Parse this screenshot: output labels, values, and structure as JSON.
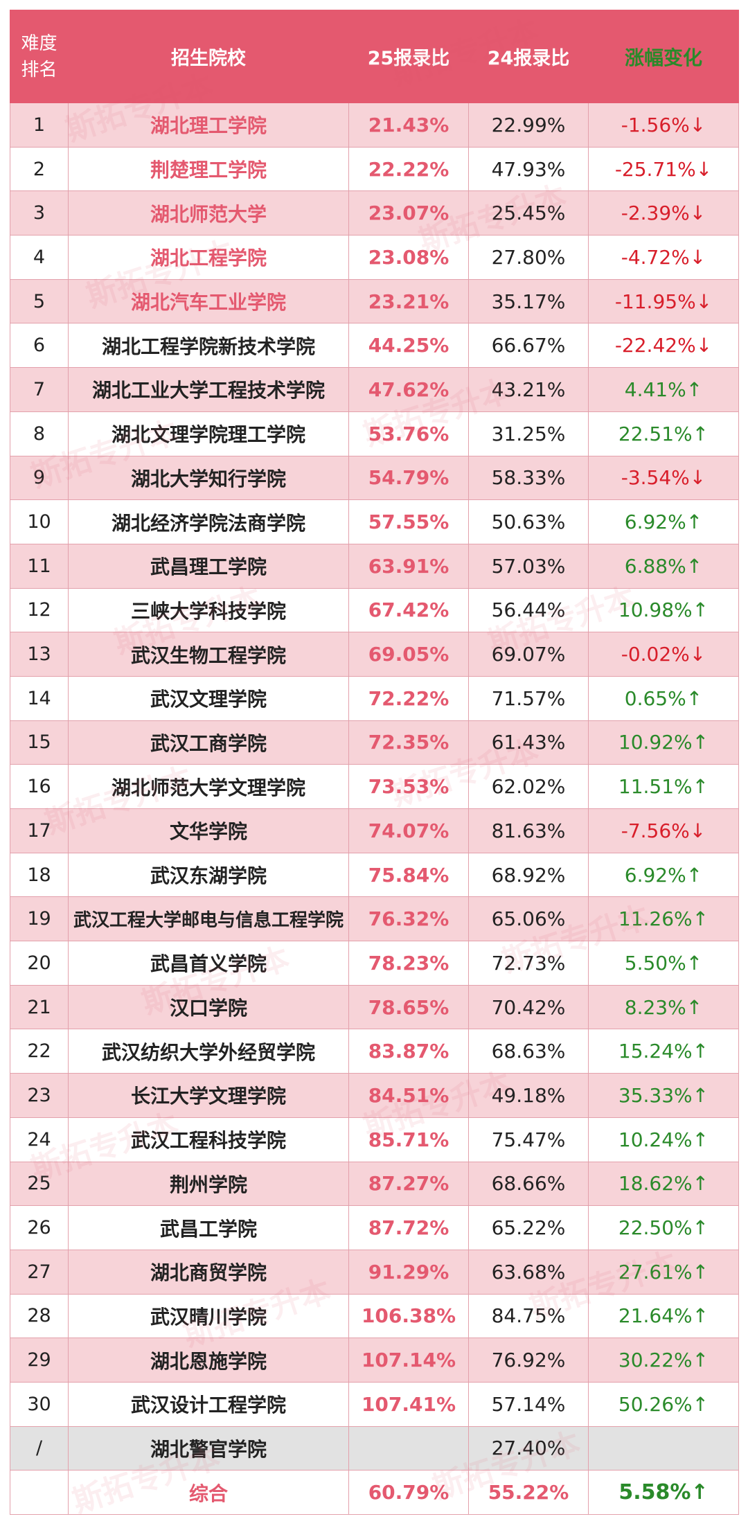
{
  "header": {
    "rank_line1": "难度",
    "rank_line2": "排名",
    "school": "招生院校",
    "ratio25": "25报录比",
    "ratio24": "24报录比",
    "change": "涨幅变化"
  },
  "rows": [
    {
      "rank": "1",
      "school": "湖北理工学院",
      "r25": "21.43%",
      "r24": "22.99%",
      "change": "-1.56%↓",
      "trend": "down",
      "top": true
    },
    {
      "rank": "2",
      "school": "荆楚理工学院",
      "r25": "22.22%",
      "r24": "47.93%",
      "change": "-25.71%↓",
      "trend": "down",
      "top": true
    },
    {
      "rank": "3",
      "school": "湖北师范大学",
      "r25": "23.07%",
      "r24": "25.45%",
      "change": "-2.39%↓",
      "trend": "down",
      "top": true
    },
    {
      "rank": "4",
      "school": "湖北工程学院",
      "r25": "23.08%",
      "r24": "27.80%",
      "change": "-4.72%↓",
      "trend": "down",
      "top": true
    },
    {
      "rank": "5",
      "school": "湖北汽车工业学院",
      "r25": "23.21%",
      "r24": "35.17%",
      "change": "-11.95%↓",
      "trend": "down",
      "top": true
    },
    {
      "rank": "6",
      "school": "湖北工程学院新技术学院",
      "r25": "44.25%",
      "r24": "66.67%",
      "change": "-22.42%↓",
      "trend": "down",
      "top": false
    },
    {
      "rank": "7",
      "school": "湖北工业大学工程技术学院",
      "r25": "47.62%",
      "r24": "43.21%",
      "change": "4.41%↑",
      "trend": "up",
      "top": false
    },
    {
      "rank": "8",
      "school": "湖北文理学院理工学院",
      "r25": "53.76%",
      "r24": "31.25%",
      "change": "22.51%↑",
      "trend": "up",
      "top": false
    },
    {
      "rank": "9",
      "school": "湖北大学知行学院",
      "r25": "54.79%",
      "r24": "58.33%",
      "change": "-3.54%↓",
      "trend": "down",
      "top": false
    },
    {
      "rank": "10",
      "school": "湖北经济学院法商学院",
      "r25": "57.55%",
      "r24": "50.63%",
      "change": "6.92%↑",
      "trend": "up",
      "top": false
    },
    {
      "rank": "11",
      "school": "武昌理工学院",
      "r25": "63.91%",
      "r24": "57.03%",
      "change": "6.88%↑",
      "trend": "up",
      "top": false
    },
    {
      "rank": "12",
      "school": "三峡大学科技学院",
      "r25": "67.42%",
      "r24": "56.44%",
      "change": "10.98%↑",
      "trend": "up",
      "top": false
    },
    {
      "rank": "13",
      "school": "武汉生物工程学院",
      "r25": "69.05%",
      "r24": "69.07%",
      "change": "-0.02%↓",
      "trend": "down",
      "top": false
    },
    {
      "rank": "14",
      "school": "武汉文理学院",
      "r25": "72.22%",
      "r24": "71.57%",
      "change": "0.65%↑",
      "trend": "up",
      "top": false
    },
    {
      "rank": "15",
      "school": "武汉工商学院",
      "r25": "72.35%",
      "r24": "61.43%",
      "change": "10.92%↑",
      "trend": "up",
      "top": false
    },
    {
      "rank": "16",
      "school": "湖北师范大学文理学院",
      "r25": "73.53%",
      "r24": "62.02%",
      "change": "11.51%↑",
      "trend": "up",
      "top": false
    },
    {
      "rank": "17",
      "school": "文华学院",
      "r25": "74.07%",
      "r24": "81.63%",
      "change": "-7.56%↓",
      "trend": "down",
      "top": false
    },
    {
      "rank": "18",
      "school": "武汉东湖学院",
      "r25": "75.84%",
      "r24": "68.92%",
      "change": "6.92%↑",
      "trend": "up",
      "top": false
    },
    {
      "rank": "19",
      "school": "武汉工程大学邮电与信息工程学院",
      "r25": "76.32%",
      "r24": "65.06%",
      "change": "11.26%↑",
      "trend": "up",
      "top": false
    },
    {
      "rank": "20",
      "school": "武昌首义学院",
      "r25": "78.23%",
      "r24": "72.73%",
      "change": "5.50%↑",
      "trend": "up",
      "top": false
    },
    {
      "rank": "21",
      "school": "汉口学院",
      "r25": "78.65%",
      "r24": "70.42%",
      "change": "8.23%↑",
      "trend": "up",
      "top": false
    },
    {
      "rank": "22",
      "school": "武汉纺织大学外经贸学院",
      "r25": "83.87%",
      "r24": "68.63%",
      "change": "15.24%↑",
      "trend": "up",
      "top": false
    },
    {
      "rank": "23",
      "school": "长江大学文理学院",
      "r25": "84.51%",
      "r24": "49.18%",
      "change": "35.33%↑",
      "trend": "up",
      "top": false
    },
    {
      "rank": "24",
      "school": "武汉工程科技学院",
      "r25": "85.71%",
      "r24": "75.47%",
      "change": "10.24%↑",
      "trend": "up",
      "top": false
    },
    {
      "rank": "25",
      "school": "荆州学院",
      "r25": "87.27%",
      "r24": "68.66%",
      "change": "18.62%↑",
      "trend": "up",
      "top": false
    },
    {
      "rank": "26",
      "school": "武昌工学院",
      "r25": "87.72%",
      "r24": "65.22%",
      "change": "22.50%↑",
      "trend": "up",
      "top": false
    },
    {
      "rank": "27",
      "school": "湖北商贸学院",
      "r25": "91.29%",
      "r24": "63.68%",
      "change": "27.61%↑",
      "trend": "up",
      "top": false
    },
    {
      "rank": "28",
      "school": "武汉晴川学院",
      "r25": "106.38%",
      "r24": "84.75%",
      "change": "21.64%↑",
      "trend": "up",
      "top": false
    },
    {
      "rank": "29",
      "school": "湖北恩施学院",
      "r25": "107.14%",
      "r24": "76.92%",
      "change": "30.22%↑",
      "trend": "up",
      "top": false
    },
    {
      "rank": "30",
      "school": "武汉设计工程学院",
      "r25": "107.41%",
      "r24": "57.14%",
      "change": "50.26%↑",
      "trend": "up",
      "top": false
    }
  ],
  "special_row": {
    "rank": "/",
    "school": "湖北警官学院",
    "r25": "",
    "r24": "27.40%",
    "change": ""
  },
  "total_row": {
    "rank": "",
    "school": "综合",
    "r25": "60.79%",
    "r24": "55.22%",
    "change": "5.58%↑"
  },
  "watermark": "斯拓专升本",
  "colors": {
    "header_bg": "#e4596f",
    "row_alt_bg": "#f7d3d8",
    "accent_red": "#e4596f",
    "down_red": "#d81e2a",
    "up_green": "#2a8a2a",
    "grey_row": "#e2e2e2"
  }
}
